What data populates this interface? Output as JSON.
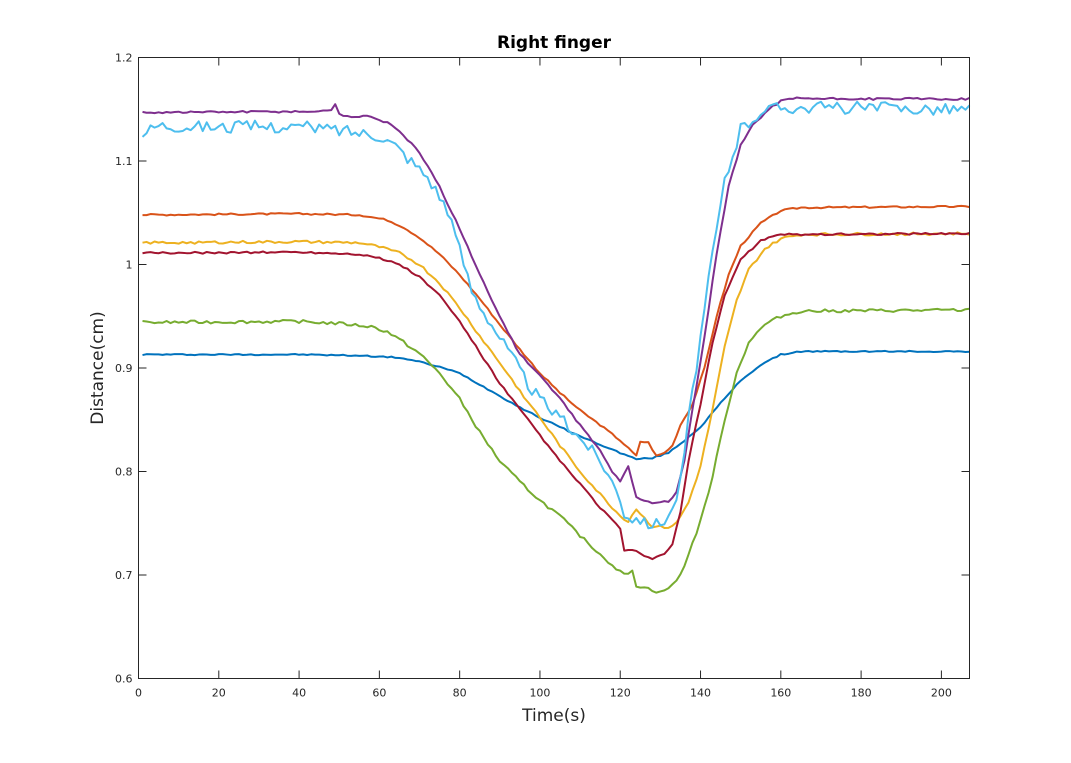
{
  "chart_data": {
    "type": "line",
    "title": "Right finger",
    "xlabel": "Time(s)",
    "ylabel": "Distance(cm)",
    "xlim": [
      0,
      207
    ],
    "ylim": [
      0.6,
      1.2
    ],
    "xticks": [
      "0",
      "20",
      "40",
      "60",
      "80",
      "100",
      "120",
      "140",
      "160",
      "180",
      "200"
    ],
    "yticks": [
      "0.6",
      "0.7",
      "0.8",
      "0.9",
      "1",
      "1.1",
      "1.2"
    ],
    "grid": false,
    "legend": "none",
    "series": [
      {
        "color": "#0072BD",
        "noise": 0.0006,
        "points": [
          [
            1,
            0.913
          ],
          [
            40,
            0.913
          ],
          [
            55,
            0.912
          ],
          [
            65,
            0.91
          ],
          [
            70,
            0.906
          ],
          [
            75,
            0.901
          ],
          [
            80,
            0.895
          ],
          [
            85,
            0.884
          ],
          [
            90,
            0.873
          ],
          [
            95,
            0.862
          ],
          [
            100,
            0.852
          ],
          [
            105,
            0.843
          ],
          [
            110,
            0.834
          ],
          [
            115,
            0.826
          ],
          [
            120,
            0.818
          ],
          [
            124,
            0.812
          ],
          [
            128,
            0.813
          ],
          [
            132,
            0.818
          ],
          [
            136,
            0.83
          ],
          [
            140,
            0.843
          ],
          [
            145,
            0.866
          ],
          [
            150,
            0.888
          ],
          [
            155,
            0.903
          ],
          [
            160,
            0.913
          ],
          [
            165,
            0.916
          ],
          [
            207,
            0.916
          ]
        ]
      },
      {
        "color": "#D95319",
        "noise": 0.0008,
        "points": [
          [
            1,
            1.048
          ],
          [
            40,
            1.049
          ],
          [
            55,
            1.048
          ],
          [
            62,
            1.043
          ],
          [
            66,
            1.036
          ],
          [
            70,
            1.026
          ],
          [
            75,
            1.01
          ],
          [
            80,
            0.99
          ],
          [
            85,
            0.967
          ],
          [
            90,
            0.942
          ],
          [
            95,
            0.918
          ],
          [
            100,
            0.895
          ],
          [
            105,
            0.876
          ],
          [
            110,
            0.859
          ],
          [
            115,
            0.845
          ],
          [
            120,
            0.83
          ],
          [
            124,
            0.815
          ],
          [
            125,
            0.829
          ],
          [
            127,
            0.828
          ],
          [
            129,
            0.815
          ],
          [
            131,
            0.818
          ],
          [
            133,
            0.825
          ],
          [
            135,
            0.845
          ],
          [
            138,
            0.865
          ],
          [
            141,
            0.9
          ],
          [
            144,
            0.95
          ],
          [
            147,
            0.99
          ],
          [
            150,
            1.018
          ],
          [
            155,
            1.04
          ],
          [
            160,
            1.052
          ],
          [
            165,
            1.055
          ],
          [
            207,
            1.056
          ]
        ]
      },
      {
        "color": "#EDB120",
        "noise": 0.0013,
        "points": [
          [
            1,
            1.021
          ],
          [
            40,
            1.022
          ],
          [
            55,
            1.021
          ],
          [
            60,
            1.017
          ],
          [
            65,
            1.011
          ],
          [
            70,
            1.0
          ],
          [
            75,
            0.982
          ],
          [
            80,
            0.958
          ],
          [
            85,
            0.931
          ],
          [
            90,
            0.905
          ],
          [
            95,
            0.878
          ],
          [
            100,
            0.852
          ],
          [
            105,
            0.825
          ],
          [
            110,
            0.8
          ],
          [
            115,
            0.778
          ],
          [
            120,
            0.757
          ],
          [
            122,
            0.752
          ],
          [
            124,
            0.764
          ],
          [
            126,
            0.755
          ],
          [
            128,
            0.747
          ],
          [
            132,
            0.746
          ],
          [
            134,
            0.75
          ],
          [
            137,
            0.77
          ],
          [
            140,
            0.805
          ],
          [
            143,
            0.86
          ],
          [
            146,
            0.92
          ],
          [
            149,
            0.965
          ],
          [
            152,
            0.995
          ],
          [
            156,
            1.015
          ],
          [
            160,
            1.025
          ],
          [
            165,
            1.029
          ],
          [
            207,
            1.03
          ]
        ]
      },
      {
        "color": "#7E2F8E",
        "noise": 0.001,
        "points": [
          [
            1,
            1.147
          ],
          [
            46,
            1.148
          ],
          [
            48,
            1.15
          ],
          [
            49,
            1.155
          ],
          [
            50,
            1.145
          ],
          [
            53,
            1.143
          ],
          [
            58,
            1.143
          ],
          [
            62,
            1.137
          ],
          [
            66,
            1.125
          ],
          [
            70,
            1.108
          ],
          [
            75,
            1.075
          ],
          [
            80,
            1.035
          ],
          [
            85,
            0.99
          ],
          [
            90,
            0.95
          ],
          [
            95,
            0.913
          ],
          [
            100,
            0.893
          ],
          [
            105,
            0.87
          ],
          [
            110,
            0.845
          ],
          [
            115,
            0.82
          ],
          [
            118,
            0.8
          ],
          [
            120,
            0.79
          ],
          [
            122,
            0.805
          ],
          [
            124,
            0.775
          ],
          [
            128,
            0.77
          ],
          [
            132,
            0.771
          ],
          [
            134,
            0.78
          ],
          [
            136,
            0.81
          ],
          [
            138,
            0.86
          ],
          [
            141,
            0.93
          ],
          [
            144,
            1.01
          ],
          [
            147,
            1.075
          ],
          [
            150,
            1.115
          ],
          [
            153,
            1.135
          ],
          [
            157,
            1.15
          ],
          [
            160,
            1.158
          ],
          [
            163,
            1.161
          ],
          [
            170,
            1.16
          ],
          [
            207,
            1.16
          ]
        ]
      },
      {
        "color": "#77AC30",
        "noise": 0.0015,
        "points": [
          [
            1,
            0.944
          ],
          [
            40,
            0.945
          ],
          [
            50,
            0.943
          ],
          [
            58,
            0.94
          ],
          [
            62,
            0.935
          ],
          [
            66,
            0.925
          ],
          [
            70,
            0.914
          ],
          [
            75,
            0.895
          ],
          [
            80,
            0.87
          ],
          [
            85,
            0.838
          ],
          [
            90,
            0.81
          ],
          [
            95,
            0.79
          ],
          [
            100,
            0.772
          ],
          [
            105,
            0.757
          ],
          [
            110,
            0.738
          ],
          [
            115,
            0.72
          ],
          [
            120,
            0.703
          ],
          [
            122,
            0.7
          ],
          [
            123,
            0.705
          ],
          [
            124,
            0.69
          ],
          [
            126,
            0.688
          ],
          [
            130,
            0.683
          ],
          [
            133,
            0.69
          ],
          [
            135,
            0.7
          ],
          [
            137,
            0.72
          ],
          [
            140,
            0.752
          ],
          [
            143,
            0.795
          ],
          [
            146,
            0.85
          ],
          [
            149,
            0.895
          ],
          [
            152,
            0.925
          ],
          [
            156,
            0.942
          ],
          [
            160,
            0.95
          ],
          [
            165,
            0.955
          ],
          [
            207,
            0.956
          ]
        ]
      },
      {
        "color": "#4DBEEE",
        "noise": 0.006,
        "points": [
          [
            1,
            1.127
          ],
          [
            5,
            1.135
          ],
          [
            20,
            1.133
          ],
          [
            40,
            1.133
          ],
          [
            50,
            1.13
          ],
          [
            60,
            1.125
          ],
          [
            64,
            1.115
          ],
          [
            68,
            1.1
          ],
          [
            72,
            1.085
          ],
          [
            76,
            1.06
          ],
          [
            80,
            1.015
          ],
          [
            83,
            0.975
          ],
          [
            86,
            0.955
          ],
          [
            90,
            0.93
          ],
          [
            94,
            0.905
          ],
          [
            97,
            0.885
          ],
          [
            100,
            0.87
          ],
          [
            104,
            0.855
          ],
          [
            108,
            0.84
          ],
          [
            112,
            0.825
          ],
          [
            116,
            0.805
          ],
          [
            118,
            0.79
          ],
          [
            120,
            0.775
          ],
          [
            121,
            0.76
          ],
          [
            123,
            0.755
          ],
          [
            125,
            0.755
          ],
          [
            126,
            0.75
          ],
          [
            130,
            0.75
          ],
          [
            133,
            0.763
          ],
          [
            135,
            0.79
          ],
          [
            137,
            0.85
          ],
          [
            140,
            0.93
          ],
          [
            143,
            1.01
          ],
          [
            146,
            1.08
          ],
          [
            150,
            1.13
          ],
          [
            155,
            1.148
          ],
          [
            160,
            1.152
          ],
          [
            207,
            1.15
          ]
        ]
      },
      {
        "color": "#A2142F",
        "noise": 0.0009,
        "points": [
          [
            1,
            1.011
          ],
          [
            40,
            1.012
          ],
          [
            55,
            1.01
          ],
          [
            60,
            1.006
          ],
          [
            65,
            1.0
          ],
          [
            70,
            0.988
          ],
          [
            75,
            0.97
          ],
          [
            80,
            0.945
          ],
          [
            85,
            0.915
          ],
          [
            90,
            0.885
          ],
          [
            95,
            0.86
          ],
          [
            100,
            0.835
          ],
          [
            105,
            0.81
          ],
          [
            110,
            0.788
          ],
          [
            115,
            0.765
          ],
          [
            120,
            0.745
          ],
          [
            121,
            0.723
          ],
          [
            123,
            0.725
          ],
          [
            125,
            0.72
          ],
          [
            128,
            0.716
          ],
          [
            131,
            0.72
          ],
          [
            133,
            0.73
          ],
          [
            135,
            0.76
          ],
          [
            137,
            0.81
          ],
          [
            140,
            0.865
          ],
          [
            143,
            0.925
          ],
          [
            146,
            0.97
          ],
          [
            150,
            1.005
          ],
          [
            155,
            1.023
          ],
          [
            160,
            1.029
          ],
          [
            207,
            1.03
          ]
        ]
      }
    ]
  }
}
